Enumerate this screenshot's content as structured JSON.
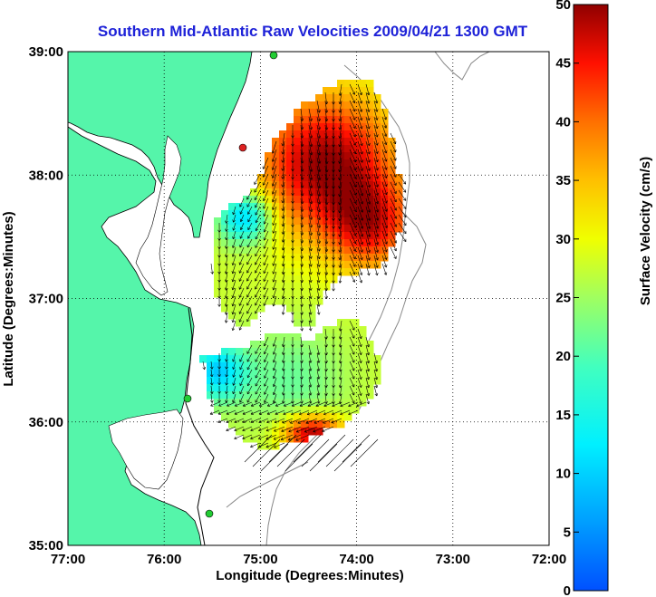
{
  "title": "Southern Mid-Atlantic Raw Velocities 2009/04/21 1300 GMT",
  "map": {
    "x_label": "Longitude (Degrees:Minutes)",
    "y_label": "Latitude (Degrees:Minutes)",
    "lon_ticks": [
      "77:00",
      "76:00",
      "75:00",
      "74:00",
      "73:00",
      "72:00"
    ],
    "lat_ticks": [
      "39:00",
      "38:00",
      "37:00",
      "36:00",
      "35:00"
    ],
    "lon_range": [
      -77,
      -72
    ],
    "lat_range": [
      35,
      39
    ],
    "land_color": "#55f5aa",
    "water_color": "#ffffff",
    "grid": "dotted"
  },
  "colorbar": {
    "label": "Surface Velocity (cm/s)",
    "ticks": [
      "50",
      "45",
      "40",
      "35",
      "30",
      "25",
      "20",
      "15",
      "10",
      "5",
      "0"
    ],
    "range": [
      0,
      50
    ],
    "colormap": "jet"
  },
  "stations": [
    {
      "name": "station-north",
      "color": "#22cc33"
    },
    {
      "name": "station-delmarva",
      "color": "#dd2222"
    },
    {
      "name": "station-hatteras-north",
      "color": "#22cc33"
    },
    {
      "name": "station-hatteras-south",
      "color": "#22cc33"
    }
  ]
}
